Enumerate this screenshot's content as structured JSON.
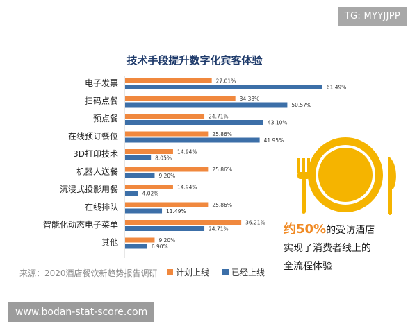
{
  "watermark_top": "TG: MYYJJPP",
  "watermark_bottom": "www.bodan-stat-score.com",
  "source": "来源：2020酒店餐饮新趋势报告调研",
  "callout": {
    "highlight": "约50%",
    "line1_rest": "的受访酒店",
    "line2": "实现了消费者线上的",
    "line3": "全流程体验"
  },
  "colors": {
    "planned": "#f0883e",
    "online": "#3c6fa8",
    "accent": "#f5b400",
    "title": "#1f3b6b"
  },
  "icon": "plate-fork-knife-icon",
  "chart_data": {
    "type": "bar",
    "orientation": "horizontal",
    "title": "技术手段提升数字化宾客体验",
    "categories": [
      "电子发票",
      "扫码点餐",
      "预点餐",
      "在线预订餐位",
      "3D打印技术",
      "机器人送餐",
      "沉浸式投影用餐",
      "在线排队",
      "智能化动态电子菜单",
      "其他"
    ],
    "series": [
      {
        "name": "计划上线",
        "values": [
          27.01,
          34.38,
          24.71,
          25.86,
          14.94,
          25.86,
          14.94,
          25.86,
          36.21,
          9.2
        ],
        "labels": [
          "27.01%",
          "34.38%",
          "24.71%",
          "25.86%",
          "14.94%",
          "25.86%",
          "14.94%",
          "25.86%",
          "36.21%",
          "9.20%"
        ]
      },
      {
        "name": "已经上线",
        "values": [
          61.49,
          50.57,
          43.1,
          41.95,
          8.05,
          9.2,
          4.02,
          11.49,
          24.71,
          6.9
        ],
        "labels": [
          "61.49%",
          "50.57%",
          "43.10%",
          "41.95%",
          "8.05%",
          "9.20%",
          "4.02%",
          "11.49%",
          "24.71%",
          "6.90%"
        ]
      }
    ],
    "xlim": [
      0,
      65
    ],
    "grid": false,
    "legend": "bottom"
  }
}
